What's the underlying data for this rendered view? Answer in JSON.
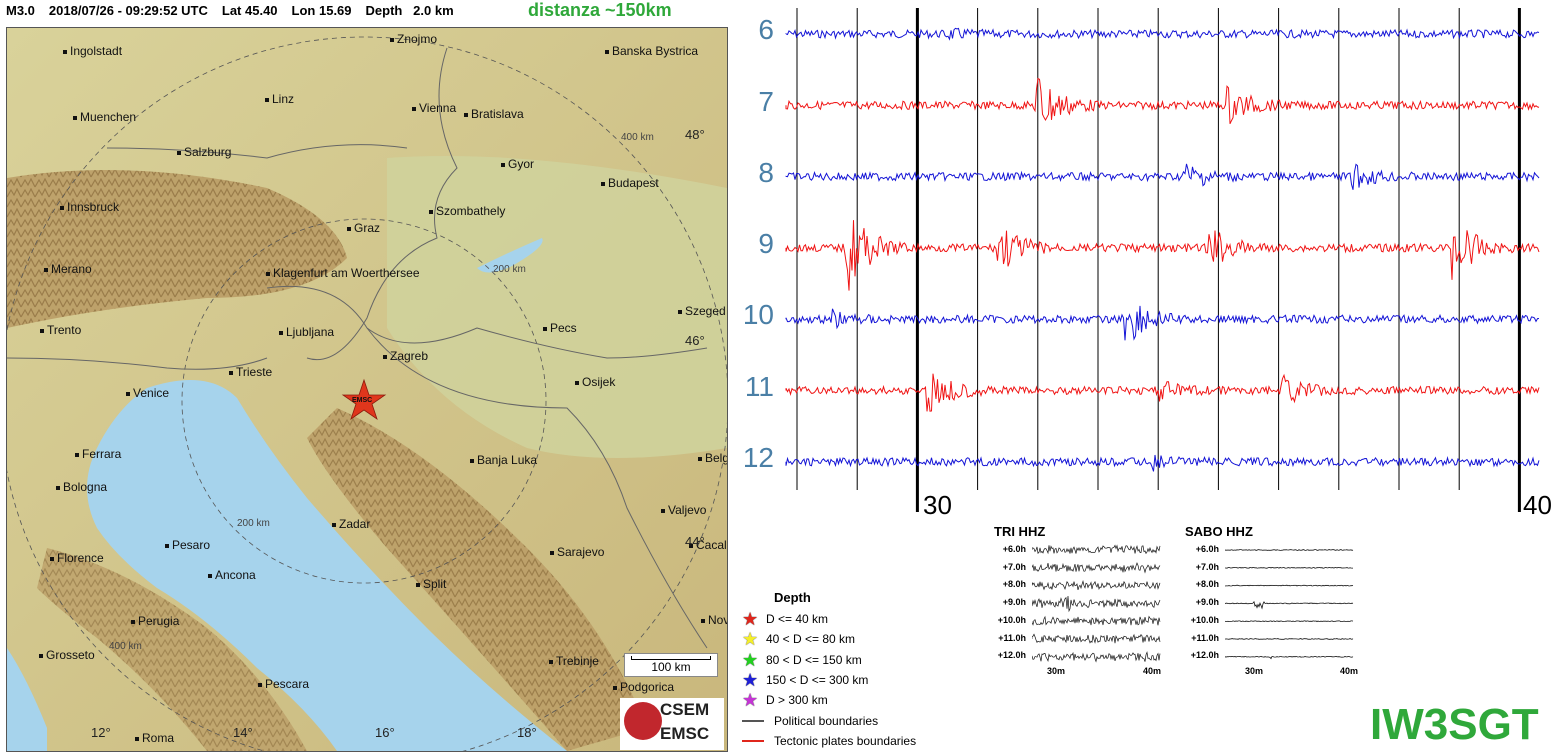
{
  "header": {
    "magnitude": "M3.0",
    "datetime": "2018/07/26 - 09:29:52 UTC",
    "lat": "Lat 45.40",
    "lon": "Lon 15.69",
    "depth": "Depth   2.0 km"
  },
  "distance_note": "distanza ~150km",
  "map": {
    "cities": [
      {
        "name": "Ingolstadt"
      },
      {
        "name": "Znojmo"
      },
      {
        "name": "Banska Bystrica"
      },
      {
        "name": "Linz"
      },
      {
        "name": "Muenchen"
      },
      {
        "name": "Vienna"
      },
      {
        "name": "Bratislava"
      },
      {
        "name": "Salzburg"
      },
      {
        "name": "Gyor"
      },
      {
        "name": "Budapest"
      },
      {
        "name": "Innsbruck"
      },
      {
        "name": "Szombathely"
      },
      {
        "name": "Graz"
      },
      {
        "name": "Merano"
      },
      {
        "name": "Klagenfurt am Woerthersee"
      },
      {
        "name": "Szeged"
      },
      {
        "name": "Trento"
      },
      {
        "name": "Ljubljana"
      },
      {
        "name": "Pecs"
      },
      {
        "name": "Zagreb"
      },
      {
        "name": "Trieste"
      },
      {
        "name": "Osijek"
      },
      {
        "name": "Venice"
      },
      {
        "name": "Ferrara"
      },
      {
        "name": "Banja Luka"
      },
      {
        "name": "Belg"
      },
      {
        "name": "Bologna"
      },
      {
        "name": "Zadar"
      },
      {
        "name": "Valjevo"
      },
      {
        "name": "Florence"
      },
      {
        "name": "Pesaro"
      },
      {
        "name": "Sarajevo"
      },
      {
        "name": "Cacal"
      },
      {
        "name": "Ancona"
      },
      {
        "name": "Split"
      },
      {
        "name": "Perugia"
      },
      {
        "name": "Novi"
      },
      {
        "name": "Grosseto"
      },
      {
        "name": "Trebinje"
      },
      {
        "name": "Pescara"
      },
      {
        "name": "Podgorica"
      },
      {
        "name": "Roma"
      }
    ],
    "rings": [
      "400 km",
      "200 km",
      "200 km",
      "400 km"
    ],
    "lat_labels": [
      "48°",
      "46°",
      "44°"
    ],
    "lon_labels": [
      "12°",
      "14°",
      "16°",
      "18°"
    ],
    "epicenter_label": "EMSC",
    "scale_label": "100 km",
    "logo_line1": "CSEM",
    "logo_line2": "EMSC"
  },
  "legend": {
    "title": "Depth",
    "items": [
      {
        "label": "D <= 40 km",
        "color": "#e0261c"
      },
      {
        "label": "40 < D <= 80 km",
        "color": "#f4ee2a"
      },
      {
        "label": "80 < D <= 150 km",
        "color": "#22d11f"
      },
      {
        "label": "150 < D <= 300 km",
        "color": "#1f1fd8"
      },
      {
        "label": "D > 300 km",
        "color": "#c534d6"
      }
    ],
    "lines": [
      {
        "label": "Political boundaries",
        "color": "#555555"
      },
      {
        "label": "Tectonic plates boundaries",
        "color": "#e0261c"
      }
    ]
  },
  "helicorder": {
    "hours": [
      "6",
      "7",
      "8",
      "9",
      "10",
      "11",
      "12"
    ],
    "trace_colors": [
      "#1414d6",
      "#f01414",
      "#1414d6",
      "#f01414",
      "#1414d6",
      "#f01414",
      "#1414d6"
    ],
    "minute_labels": [
      "30",
      "40"
    ]
  },
  "mini_tri": {
    "title": "TRI HHZ",
    "rows": [
      "+6.0h",
      "+7.0h",
      "+8.0h",
      "+9.0h",
      "+10.0h",
      "+11.0h",
      "+12.0h"
    ],
    "minutes": [
      "30m",
      "40m"
    ]
  },
  "mini_sabo": {
    "title": "SABO HHZ",
    "rows": [
      "+6.0h",
      "+7.0h",
      "+8.0h",
      "+9.0h",
      "+10.0h",
      "+11.0h",
      "+12.0h"
    ],
    "minutes": [
      "30m",
      "40m"
    ]
  },
  "callsign": "IW3SGT"
}
